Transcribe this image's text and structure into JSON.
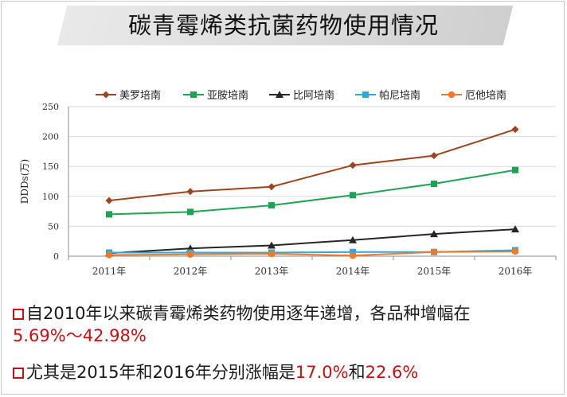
{
  "title": "碳青霉烯类抗菌药物使用情况",
  "chart_data": {
    "type": "line",
    "ylabel": "DDDs(万)",
    "xlabel": "",
    "x": [
      "2011年",
      "2012年",
      "2013年",
      "2014年",
      "2015年",
      "2016年"
    ],
    "yticks": [
      "0",
      "50",
      "100",
      "150",
      "200",
      "250"
    ],
    "ylim": [
      0,
      250
    ],
    "grid": true,
    "legend_position": "top",
    "series": [
      {
        "name": "美罗培南",
        "color": "#a0421a",
        "marker": "diamond",
        "values": [
          93,
          108,
          116,
          152,
          168,
          212
        ]
      },
      {
        "name": "亚胺培南",
        "color": "#1aa650",
        "marker": "square",
        "values": [
          70,
          74,
          85,
          102,
          121,
          144
        ]
      },
      {
        "name": "比阿培南",
        "color": "#262626",
        "marker": "triangle",
        "values": [
          5,
          13,
          18,
          27,
          37,
          45
        ]
      },
      {
        "name": "帕尼培南",
        "color": "#2aaae0",
        "marker": "square",
        "values": [
          6,
          6,
          6,
          7,
          7,
          10
        ]
      },
      {
        "name": "厄他培南",
        "color": "#ee7a2a",
        "marker": "circle",
        "values": [
          2,
          3,
          4,
          1,
          7,
          8
        ]
      }
    ]
  },
  "bullets": [
    {
      "line1": "自2010年以来碳青霉烯类药物使用逐年递增，各品种增幅在",
      "line2_red": "5.69%～42.98%"
    },
    {
      "text_a": "尤其是2015年和2016年分别涨幅是",
      "red_a": "17.0%",
      "text_b": "和",
      "red_b": "22.6%"
    }
  ]
}
